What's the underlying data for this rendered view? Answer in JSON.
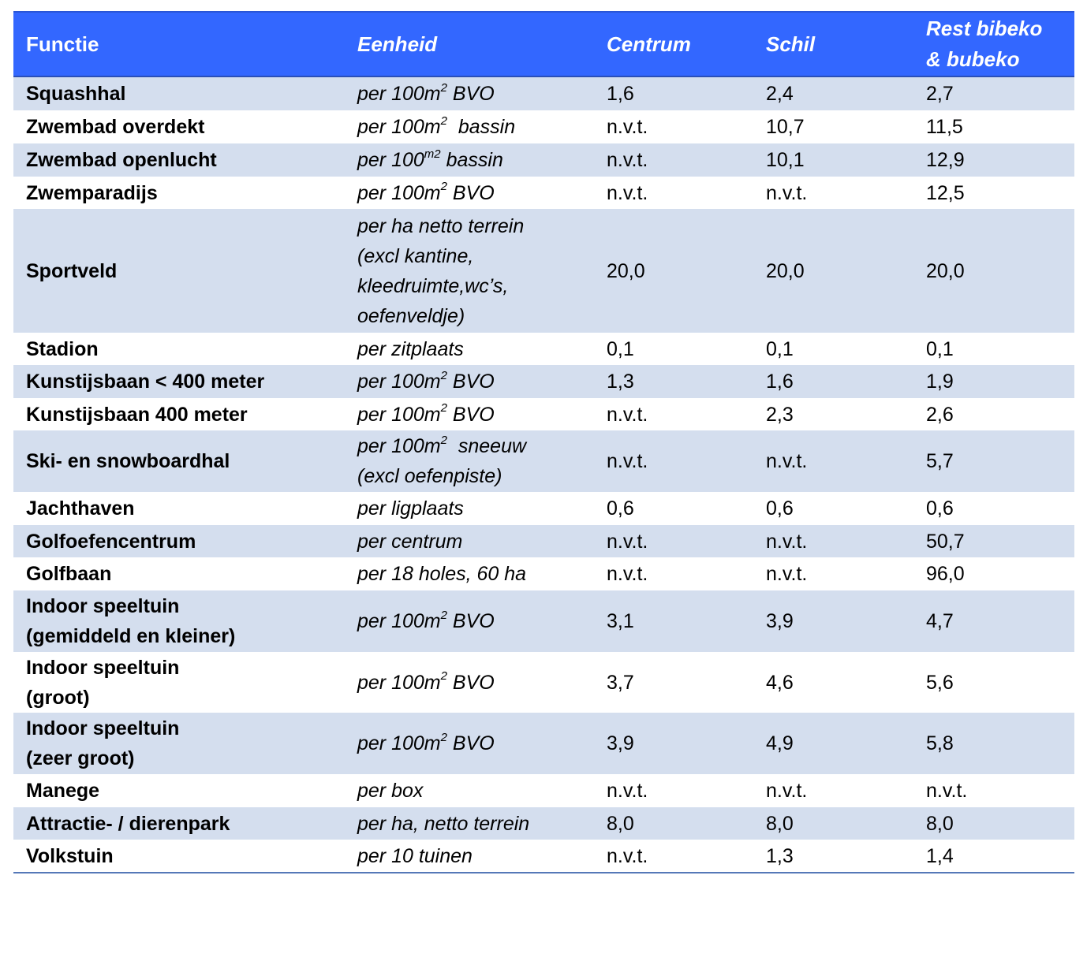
{
  "header": {
    "functie": "Functie",
    "eenheid": "Eenheid",
    "centrum": "Centrum",
    "schil": "Schil",
    "rest_line1": "Rest bibeko",
    "rest_line2": "& bubeko"
  },
  "rows": [
    {
      "functie": [
        "Squashhal"
      ],
      "eenheid": [
        [
          "per 100m",
          "2",
          " BVO"
        ]
      ],
      "centrum": "1,6",
      "schil": "2,4",
      "rest": "2,7"
    },
    {
      "functie": [
        "Zwembad overdekt"
      ],
      "eenheid": [
        [
          "per 100m",
          "2",
          "  bassin"
        ]
      ],
      "centrum": "n.v.t.",
      "schil": "10,7",
      "rest": "11,5"
    },
    {
      "functie": [
        "Zwembad openlucht"
      ],
      "eenheid": [
        [
          "per 100",
          "m2",
          " bassin"
        ]
      ],
      "centrum": "n.v.t.",
      "schil": "10,1",
      "rest": "12,9"
    },
    {
      "functie": [
        "Zwemparadijs"
      ],
      "eenheid": [
        [
          "per 100m",
          "2",
          " BVO"
        ]
      ],
      "centrum": "n.v.t.",
      "schil": "n.v.t.",
      "rest": "12,5"
    },
    {
      "functie": [
        "Sportveld"
      ],
      "eenheid": [
        [
          "per ha netto terrein",
          "",
          ""
        ],
        [
          "(excl kantine,",
          "",
          ""
        ],
        [
          "kleedruimte,wc’s,",
          "",
          ""
        ],
        [
          "oefenveldje)",
          "",
          ""
        ]
      ],
      "centrum": "20,0",
      "schil": "20,0",
      "rest": "20,0"
    },
    {
      "functie": [
        "Stadion"
      ],
      "eenheid": [
        [
          "per zitplaats",
          "",
          ""
        ]
      ],
      "centrum": "0,1",
      "schil": "0,1",
      "rest": "0,1"
    },
    {
      "functie": [
        "Kunstijsbaan < 400 meter"
      ],
      "eenheid": [
        [
          "per 100m",
          "2",
          " BVO"
        ]
      ],
      "centrum": "1,3",
      "schil": "1,6",
      "rest": "1,9"
    },
    {
      "functie": [
        "Kunstijsbaan 400 meter"
      ],
      "eenheid": [
        [
          "per 100m",
          "2",
          " BVO"
        ]
      ],
      "centrum": "n.v.t.",
      "schil": "2,3",
      "rest": "2,6"
    },
    {
      "functie": [
        "Ski- en snowboardhal"
      ],
      "eenheid": [
        [
          "per 100m",
          "2",
          "  sneeuw"
        ],
        [
          "(excl oefenpiste)",
          "",
          ""
        ]
      ],
      "centrum": "n.v.t.",
      "schil": "n.v.t.",
      "rest": "5,7"
    },
    {
      "functie": [
        "Jachthaven"
      ],
      "eenheid": [
        [
          "per ligplaats",
          "",
          ""
        ]
      ],
      "centrum": "0,6",
      "schil": "0,6",
      "rest": "0,6"
    },
    {
      "functie": [
        "Golfoefencentrum"
      ],
      "eenheid": [
        [
          "per centrum",
          "",
          ""
        ]
      ],
      "centrum": "n.v.t.",
      "schil": "n.v.t.",
      "rest": "50,7"
    },
    {
      "functie": [
        "Golfbaan"
      ],
      "eenheid": [
        [
          "per 18 holes, 60 ha",
          "",
          ""
        ]
      ],
      "centrum": "n.v.t.",
      "schil": "n.v.t.",
      "rest": "96,0"
    },
    {
      "functie": [
        "Indoor speeltuin",
        "(gemiddeld en kleiner)"
      ],
      "eenheid": [
        [
          "per 100m",
          "2",
          " BVO"
        ]
      ],
      "centrum": "3,1",
      "schil": "3,9",
      "rest": "4,7"
    },
    {
      "functie": [
        "Indoor speeltuin",
        "(groot)"
      ],
      "eenheid": [
        [
          "per 100m",
          "2",
          " BVO"
        ]
      ],
      "centrum": "3,7",
      "schil": "4,6",
      "rest": "5,6"
    },
    {
      "functie": [
        "Indoor speeltuin",
        "(zeer groot)"
      ],
      "eenheid": [
        [
          "per 100m",
          "2",
          " BVO"
        ]
      ],
      "centrum": "3,9",
      "schil": "4,9",
      "rest": "5,8"
    },
    {
      "functie": [
        "Manege"
      ],
      "eenheid": [
        [
          "per box",
          "",
          ""
        ]
      ],
      "centrum": "n.v.t.",
      "schil": "n.v.t.",
      "rest": "n.v.t."
    },
    {
      "functie": [
        "Attractie- / dierenpark"
      ],
      "eenheid": [
        [
          "per ha, netto terrein",
          "",
          ""
        ]
      ],
      "centrum": "8,0",
      "schil": "8,0",
      "rest": "8,0"
    },
    {
      "functie": [
        "Volkstuin"
      ],
      "eenheid": [
        [
          "per 10 tuinen",
          "",
          ""
        ]
      ],
      "centrum": "n.v.t.",
      "schil": "1,3",
      "rest": "1,4"
    }
  ],
  "colors": {
    "header_bg": "#3367ff",
    "stripe_bg": "#d4deee",
    "rule": "#5578b8"
  }
}
